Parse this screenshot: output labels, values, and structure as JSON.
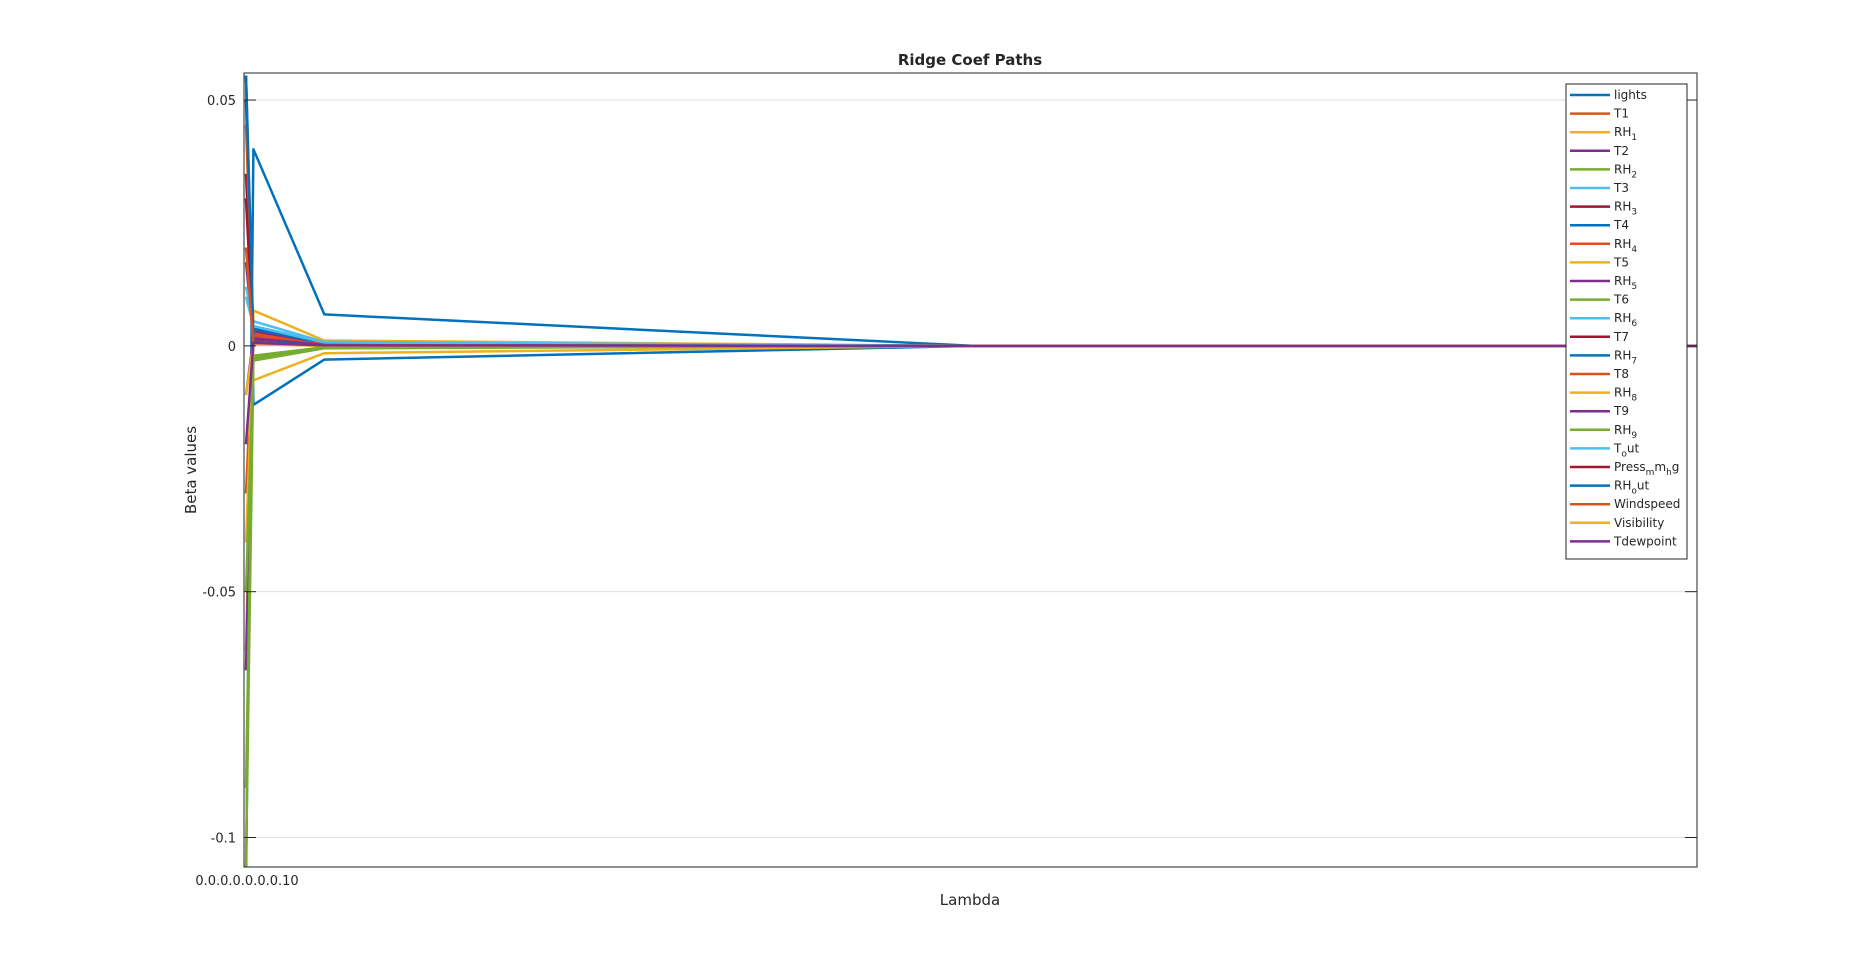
{
  "chart_data": {
    "type": "line",
    "title": "Ridge Coef Paths",
    "xlabel": "Lambda",
    "ylabel": "Beta values",
    "ylim": [
      -0.106,
      0.0555
    ],
    "xlim": [
      0,
      1000000.0
    ],
    "yticks": [
      0.05,
      0,
      -0.05,
      -0.1
    ],
    "ytick_labels": [
      "0.05",
      "0",
      "-0.05",
      "-0.1"
    ],
    "xtick_labels_overlapping": "0.0.0.0.0.0.0.10",
    "grid": "horizontal",
    "legend_position": "top-right",
    "x": [
      0,
      1000,
      50000,
      500000,
      1000000
    ],
    "series": [
      {
        "name": "lights",
        "label_parts": [
          [
            "lights",
            ""
          ]
        ],
        "color": "#0072BD",
        "values": [
          -0.11,
          0.04,
          0.0064,
          0.0,
          0.0
        ]
      },
      {
        "name": "T1",
        "label_parts": [
          [
            "T1",
            ""
          ]
        ],
        "color": "#D95319",
        "values": [
          0.055,
          0.002,
          0.0004,
          0.0,
          0.0
        ]
      },
      {
        "name": "RH_1",
        "label_parts": [
          [
            "RH",
            ""
          ],
          [
            "1",
            "sub"
          ]
        ],
        "color": "#EDB120",
        "values": [
          -0.062,
          0.0072,
          0.0011,
          0.0,
          0.0
        ]
      },
      {
        "name": "T2",
        "label_parts": [
          [
            "T2",
            ""
          ]
        ],
        "color": "#7E2F8E",
        "values": [
          0.017,
          0.0015,
          0.0003,
          0.0,
          0.0
        ]
      },
      {
        "name": "RH_2",
        "label_parts": [
          [
            "RH",
            ""
          ],
          [
            "2",
            "sub"
          ]
        ],
        "color": "#77AC30",
        "values": [
          -0.106,
          -0.0025,
          -0.0004,
          0.0,
          0.0
        ]
      },
      {
        "name": "T3",
        "label_parts": [
          [
            "T3",
            ""
          ]
        ],
        "color": "#4DBEEE",
        "values": [
          0.012,
          0.005,
          0.0008,
          0.0,
          0.0
        ]
      },
      {
        "name": "RH_3",
        "label_parts": [
          [
            "RH",
            ""
          ],
          [
            "3",
            "sub"
          ]
        ],
        "color": "#A2142F",
        "values": [
          0.035,
          0.0012,
          0.0002,
          0.0,
          0.0
        ]
      },
      {
        "name": "T4",
        "label_parts": [
          [
            "T4",
            ""
          ]
        ],
        "color": "#0072BD",
        "values": [
          0.055,
          -0.012,
          -0.0028,
          0.0,
          0.0
        ]
      },
      {
        "name": "RH_4",
        "label_parts": [
          [
            "RH",
            ""
          ],
          [
            "4",
            "sub"
          ]
        ],
        "color": "#D95319",
        "values": [
          -0.03,
          0.0025,
          0.0005,
          0.0,
          0.0
        ]
      },
      {
        "name": "T5",
        "label_parts": [
          [
            "T5",
            ""
          ]
        ],
        "color": "#EDB120",
        "values": [
          -0.02,
          -0.007,
          -0.0015,
          0.0,
          0.0
        ]
      },
      {
        "name": "RH_5",
        "label_parts": [
          [
            "RH",
            ""
          ],
          [
            "5",
            "sub"
          ]
        ],
        "color": "#7E2F8E",
        "values": [
          -0.066,
          0.003,
          0.0006,
          0.0,
          0.0
        ]
      },
      {
        "name": "T6",
        "label_parts": [
          [
            "T6",
            ""
          ]
        ],
        "color": "#77AC30",
        "values": [
          -0.09,
          -0.002,
          -0.0003,
          0.0,
          0.0
        ]
      },
      {
        "name": "RH_6",
        "label_parts": [
          [
            "RH",
            ""
          ],
          [
            "6",
            "sub"
          ]
        ],
        "color": "#4DBEEE",
        "values": [
          0.01,
          0.004,
          0.0007,
          0.0,
          0.0
        ]
      },
      {
        "name": "T7",
        "label_parts": [
          [
            "T7",
            ""
          ]
        ],
        "color": "#A2142F",
        "values": [
          0.05,
          0.001,
          0.0002,
          0.0,
          0.0
        ]
      },
      {
        "name": "RH_7",
        "label_parts": [
          [
            "RH",
            ""
          ],
          [
            "7",
            "sub"
          ]
        ],
        "color": "#0072BD",
        "values": [
          0.03,
          0.0035,
          0.0006,
          0.0,
          0.0
        ]
      },
      {
        "name": "T8",
        "label_parts": [
          [
            "T8",
            ""
          ]
        ],
        "color": "#D95319",
        "values": [
          0.045,
          0.002,
          0.0003,
          0.0,
          0.0
        ]
      },
      {
        "name": "RH_8",
        "label_parts": [
          [
            "RH",
            ""
          ],
          [
            "8",
            "sub"
          ]
        ],
        "color": "#EDB120",
        "values": [
          -0.04,
          0.0008,
          0.0001,
          0.0,
          0.0
        ]
      },
      {
        "name": "T9",
        "label_parts": [
          [
            "T9",
            ""
          ]
        ],
        "color": "#7E2F8E",
        "values": [
          -0.01,
          0.0015,
          0.0002,
          0.0,
          0.0
        ]
      },
      {
        "name": "RH_9",
        "label_parts": [
          [
            "RH",
            ""
          ],
          [
            "9",
            "sub"
          ]
        ],
        "color": "#77AC30",
        "values": [
          -0.05,
          -0.003,
          -0.0005,
          0.0,
          0.0
        ]
      },
      {
        "name": "T_out",
        "label_parts": [
          [
            "T",
            ""
          ],
          [
            "o",
            "sub"
          ],
          [
            "ut",
            ""
          ]
        ],
        "color": "#4DBEEE",
        "values": [
          0.02,
          0.004,
          0.0007,
          0.0,
          0.0
        ]
      },
      {
        "name": "Press_mm_hg",
        "label_parts": [
          [
            "Press",
            ""
          ],
          [
            "m",
            "sub"
          ],
          [
            "m",
            ""
          ],
          [
            "h",
            "sub"
          ],
          [
            "g",
            ""
          ]
        ],
        "color": "#A2142F",
        "values": [
          0.03,
          0.0005,
          0.0001,
          0.0,
          0.0
        ]
      },
      {
        "name": "RH_out",
        "label_parts": [
          [
            "RH",
            ""
          ],
          [
            "o",
            "sub"
          ],
          [
            "ut",
            ""
          ]
        ],
        "color": "#0072BD",
        "values": [
          0.055,
          0.0008,
          0.0001,
          0.0,
          0.0
        ]
      },
      {
        "name": "Windspeed",
        "label_parts": [
          [
            "Windspeed",
            ""
          ]
        ],
        "color": "#D95319",
        "values": [
          0.02,
          0.0005,
          0.0001,
          0.0,
          0.0
        ]
      },
      {
        "name": "Visibility",
        "label_parts": [
          [
            "Visibility",
            ""
          ]
        ],
        "color": "#EDB120",
        "values": [
          -0.01,
          0.0003,
          0.0,
          0.0,
          0.0
        ]
      },
      {
        "name": "Tdewpoint",
        "label_parts": [
          [
            "Tdewpoint",
            ""
          ]
        ],
        "color": "#7E2F8E",
        "values": [
          -0.02,
          0.0006,
          0.0001,
          0.0,
          0.0
        ]
      }
    ]
  }
}
